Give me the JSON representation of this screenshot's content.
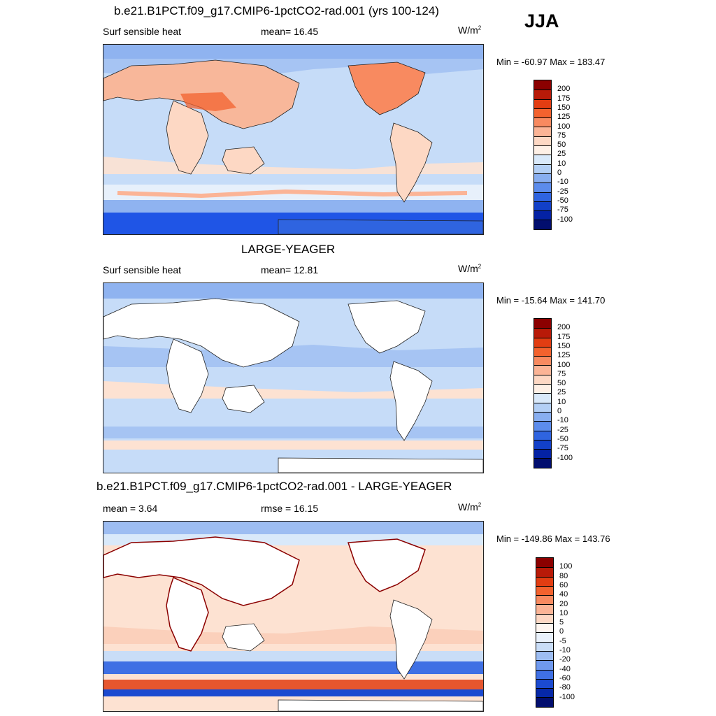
{
  "season": "JJA",
  "units_main": "W/m",
  "units_sup": "2",
  "panels": [
    {
      "title": "b.e21.B1PCT.f09_g17.CMIP6-1pctCO2-rad.001 (yrs 100-124)",
      "left_label": "Surf sensible heat",
      "center_label": "mean=  16.45",
      "minmax": "Min = -60.97 Max = 183.47",
      "colorbar": {
        "levels": [
          "200",
          "175",
          "150",
          "125",
          "100",
          "75",
          "50",
          "25",
          "10",
          "0",
          "-10",
          "-25",
          "-50",
          "-75",
          "-100"
        ],
        "colors": [
          "#8b0000",
          "#b81a08",
          "#e23d12",
          "#f3622e",
          "#f88a60",
          "#fbb496",
          "#fdd8c4",
          "#fef0e6",
          "#d9e9fa",
          "#b3cff5",
          "#88aef0",
          "#5c8cec",
          "#2f64e0",
          "#1240c8",
          "#0422a4",
          "#020e6e"
        ]
      }
    },
    {
      "title": "LARGE-YEAGER",
      "left_label": "Surf sensible heat",
      "center_label": "mean=  12.81",
      "minmax": "Min = -15.64 Max = 141.70",
      "colorbar": {
        "levels": [
          "200",
          "175",
          "150",
          "125",
          "100",
          "75",
          "50",
          "25",
          "10",
          "0",
          "-10",
          "-25",
          "-50",
          "-75",
          "-100"
        ],
        "colors": [
          "#8b0000",
          "#b81a08",
          "#e23d12",
          "#f3622e",
          "#f88a60",
          "#fbb496",
          "#fdd8c4",
          "#fef0e6",
          "#d9e9fa",
          "#b3cff5",
          "#88aef0",
          "#5c8cec",
          "#2f64e0",
          "#1240c8",
          "#0422a4",
          "#020e6e"
        ]
      }
    },
    {
      "title": "b.e21.B1PCT.f09_g17.CMIP6-1pctCO2-rad.001 - LARGE-YEAGER",
      "left_label": "mean =   3.64",
      "center_label": "rmse =  16.15",
      "minmax": "Min = -149.86 Max = 143.76",
      "colorbar": {
        "levels": [
          "100",
          "80",
          "60",
          "40",
          "20",
          "10",
          "5",
          "0",
          "-5",
          "-10",
          "-20",
          "-40",
          "-60",
          "-80",
          "-100"
        ],
        "colors": [
          "#8b0000",
          "#b81a08",
          "#e23d12",
          "#f3622e",
          "#f88a60",
          "#fbb496",
          "#fdd8c4",
          "#fef6f0",
          "#e9f1fb",
          "#c9ddf7",
          "#9dbdf2",
          "#6f99ee",
          "#3f70e4",
          "#1b4ad0",
          "#0628a8",
          "#020e6e"
        ]
      }
    }
  ]
}
